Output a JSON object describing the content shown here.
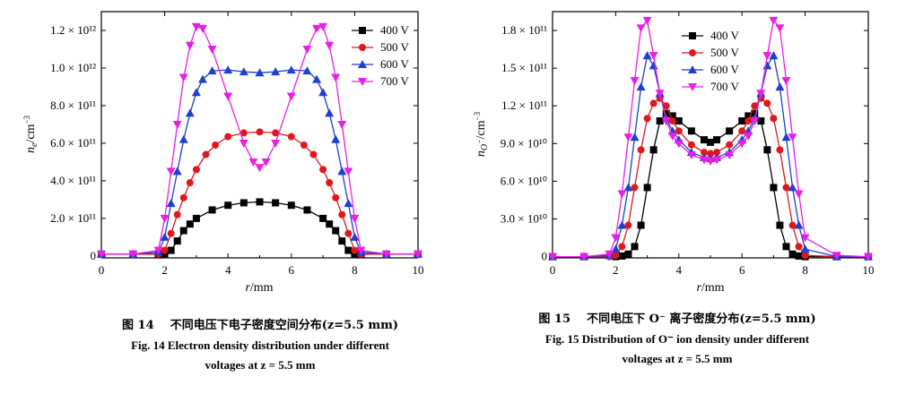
{
  "chart_data": [
    {
      "type": "line",
      "figure_label": "图 14",
      "caption_zh": "不同电压下电子密度空间分布(z=5.5 mm)",
      "caption_en_line1": "Fig. 14   Electron density distribution under different",
      "caption_en_line2": "voltages at z = 5.5 mm",
      "xlabel": "r/mm",
      "ylabel": "ne/cm−3",
      "xlim": [
        0,
        10
      ],
      "ylim": [
        -10000000000.0,
        1300000000000.0
      ],
      "xticks": [
        0,
        2,
        4,
        6,
        8,
        10
      ],
      "xtick_labels": [
        "0",
        "2",
        "4",
        "6",
        "8",
        "10"
      ],
      "yticks": [
        0,
        200000000000.0,
        400000000000.0,
        600000000000.0,
        800000000000.0,
        1000000000000.0,
        1200000000000.0
      ],
      "ytick_labels": [
        "0",
        "2.0 × 10¹¹",
        "4.0 × 10¹¹",
        "6.0 × 10¹¹",
        "8.0 × 10¹¹",
        "1.0 × 10¹²",
        "1.2 × 10¹²"
      ],
      "legend_position": "top-right",
      "series": [
        {
          "name": "400 V",
          "color": "#000000",
          "marker": "square",
          "x": [
            0,
            1,
            1.8,
            2.0,
            2.2,
            2.4,
            2.6,
            2.8,
            3.0,
            3.5,
            4.0,
            4.5,
            5.0,
            5.5,
            6.0,
            6.5,
            7.0,
            7.2,
            7.4,
            7.6,
            7.8,
            8.0,
            8.2,
            9,
            10
          ],
          "y": [
            10000000000.0,
            10000000000.0,
            10000000000.0,
            12000000000.0,
            30000000000.0,
            80000000000.0,
            135000000000.0,
            170000000000.0,
            200000000000.0,
            245000000000.0,
            270000000000.0,
            283000000000.0,
            288000000000.0,
            283000000000.0,
            270000000000.0,
            245000000000.0,
            200000000000.0,
            170000000000.0,
            135000000000.0,
            80000000000.0,
            30000000000.0,
            12000000000.0,
            10000000000.0,
            10000000000.0,
            10000000000.0
          ]
        },
        {
          "name": "500 V",
          "color": "#e0181b",
          "marker": "circle",
          "x": [
            0,
            1,
            1.8,
            2.0,
            2.2,
            2.4,
            2.6,
            2.8,
            3.0,
            3.3,
            3.6,
            4.0,
            4.5,
            5.0,
            5.5,
            6.0,
            6.4,
            6.7,
            7.0,
            7.2,
            7.4,
            7.6,
            7.8,
            8.0,
            8.2,
            9,
            10
          ],
          "y": [
            10000000000.0,
            10000000000.0,
            10000000000.0,
            30000000000.0,
            120000000000.0,
            220000000000.0,
            310000000000.0,
            390000000000.0,
            460000000000.0,
            540000000000.0,
            590000000000.0,
            635000000000.0,
            655000000000.0,
            660000000000.0,
            655000000000.0,
            635000000000.0,
            590000000000.0,
            540000000000.0,
            460000000000.0,
            390000000000.0,
            310000000000.0,
            220000000000.0,
            120000000000.0,
            30000000000.0,
            10000000000.0,
            10000000000.0,
            10000000000.0
          ]
        },
        {
          "name": "600 V",
          "color": "#1f3fcf",
          "marker": "triangle-up",
          "x": [
            0,
            1,
            1.8,
            2.0,
            2.2,
            2.4,
            2.6,
            2.8,
            3.0,
            3.2,
            3.5,
            4.0,
            4.5,
            5.0,
            5.5,
            6.0,
            6.5,
            6.8,
            7.0,
            7.2,
            7.4,
            7.6,
            7.8,
            8.0,
            8.2,
            9,
            10
          ],
          "y": [
            10000000000.0,
            10000000000.0,
            20000000000.0,
            100000000000.0,
            280000000000.0,
            450000000000.0,
            620000000000.0,
            760000000000.0,
            870000000000.0,
            940000000000.0,
            985000000000.0,
            990000000000.0,
            980000000000.0,
            975000000000.0,
            980000000000.0,
            990000000000.0,
            985000000000.0,
            940000000000.0,
            870000000000.0,
            760000000000.0,
            620000000000.0,
            450000000000.0,
            280000000000.0,
            100000000000.0,
            20000000000.0,
            10000000000.0,
            10000000000.0
          ]
        },
        {
          "name": "700 V",
          "color": "#ea1ee6",
          "marker": "triangle-down",
          "x": [
            0,
            1,
            1.8,
            2.0,
            2.2,
            2.4,
            2.6,
            2.8,
            3.0,
            3.2,
            3.5,
            4.0,
            4.5,
            4.8,
            5.0,
            5.2,
            5.5,
            6.0,
            6.5,
            6.8,
            7.0,
            7.2,
            7.4,
            7.6,
            7.8,
            8.0,
            8.2,
            9,
            10
          ],
          "y": [
            10000000000.0,
            10000000000.0,
            30000000000.0,
            200000000000.0,
            450000000000.0,
            700000000000.0,
            950000000000.0,
            1120000000000.0,
            1220000000000.0,
            1210000000000.0,
            1100000000000.0,
            850000000000.0,
            600000000000.0,
            500000000000.0,
            470000000000.0,
            500000000000.0,
            600000000000.0,
            850000000000.0,
            1100000000000.0,
            1210000000000.0,
            1220000000000.0,
            1120000000000.0,
            950000000000.0,
            700000000000.0,
            450000000000.0,
            200000000000.0,
            30000000000.0,
            10000000000.0,
            10000000000.0
          ]
        }
      ]
    },
    {
      "type": "line",
      "figure_label": "图 15",
      "caption_zh": "不同电压下 O⁻ 离子密度分布(z=5.5 mm)",
      "caption_en_line1": "Fig. 15   Distribution of O⁻ ion density under different",
      "caption_en_line2": "voltages at z = 5.5 mm",
      "xlabel": "r/mm",
      "ylabel": "nO−/cm−3",
      "xlim": [
        0,
        10
      ],
      "ylim": [
        -1000000000.0,
        195000000000.0
      ],
      "xticks": [
        0,
        2,
        4,
        6,
        8,
        10
      ],
      "xtick_labels": [
        "0",
        "2",
        "4",
        "6",
        "8",
        "10"
      ],
      "yticks": [
        0,
        30000000000.0,
        60000000000.0,
        90000000000.0,
        120000000000.0,
        150000000000.0,
        180000000000.0
      ],
      "ytick_labels": [
        "0",
        "3.0 × 10¹⁰",
        "6.0 × 10¹⁰",
        "9.0 × 10¹⁰",
        "1.2 × 10¹¹",
        "1.5 × 10¹¹",
        "1.8 × 10¹¹"
      ],
      "legend_position": "top-center",
      "series": [
        {
          "name": "400 V",
          "color": "#000000",
          "marker": "square",
          "x": [
            0,
            1,
            2.0,
            2.2,
            2.4,
            2.6,
            2.8,
            3.0,
            3.2,
            3.4,
            3.6,
            3.8,
            4.0,
            4.4,
            4.8,
            5.0,
            5.2,
            5.6,
            6.0,
            6.2,
            6.4,
            6.6,
            6.8,
            7.0,
            7.2,
            7.4,
            7.6,
            7.8,
            8.0,
            9,
            10
          ],
          "y": [
            0,
            0,
            0,
            500000000.0,
            2000000000.0,
            8000000000.0,
            25000000000.0,
            55000000000.0,
            85000000000.0,
            108000000000.0,
            114000000000.0,
            112000000000.0,
            108000000000.0,
            100000000000.0,
            93000000000.0,
            91000000000.0,
            93000000000.0,
            100000000000.0,
            108000000000.0,
            112000000000.0,
            114000000000.0,
            108000000000.0,
            85000000000.0,
            55000000000.0,
            25000000000.0,
            8000000000.0,
            2000000000.0,
            500000000.0,
            0,
            0,
            0
          ]
        },
        {
          "name": "500 V",
          "color": "#e0181b",
          "marker": "circle",
          "x": [
            0,
            1,
            1.8,
            2.0,
            2.2,
            2.4,
            2.6,
            2.8,
            3.0,
            3.2,
            3.4,
            3.6,
            3.8,
            4.0,
            4.4,
            4.8,
            5.0,
            5.2,
            5.6,
            6.0,
            6.2,
            6.4,
            6.6,
            6.8,
            7.0,
            7.2,
            7.4,
            7.6,
            7.8,
            8.0,
            9,
            10
          ],
          "y": [
            0,
            0,
            0,
            1000000000.0,
            8000000000.0,
            25000000000.0,
            55000000000.0,
            85000000000.0,
            110000000000.0,
            122000000000.0,
            126000000000.0,
            120000000000.0,
            108000000000.0,
            100000000000.0,
            89000000000.0,
            83000000000.0,
            82000000000.0,
            83000000000.0,
            89000000000.0,
            100000000000.0,
            108000000000.0,
            120000000000.0,
            126000000000.0,
            122000000000.0,
            110000000000.0,
            85000000000.0,
            55000000000.0,
            25000000000.0,
            8000000000.0,
            1000000000.0,
            0,
            0
          ]
        },
        {
          "name": "600 V",
          "color": "#1f3fcf",
          "marker": "triangle-up",
          "x": [
            0,
            1,
            1.8,
            2.0,
            2.2,
            2.4,
            2.6,
            2.8,
            3.0,
            3.2,
            3.4,
            3.6,
            3.8,
            4.0,
            4.4,
            4.8,
            5.0,
            5.2,
            5.6,
            6.0,
            6.2,
            6.4,
            6.6,
            6.8,
            7.0,
            7.2,
            7.4,
            7.6,
            7.8,
            8.0,
            9,
            10
          ],
          "y": [
            0,
            0,
            1000000000.0,
            6000000000.0,
            25000000000.0,
            55000000000.0,
            95000000000.0,
            135000000000.0,
            160000000000.0,
            152000000000.0,
            130000000000.0,
            110000000000.0,
            100000000000.0,
            93000000000.0,
            83000000000.0,
            79000000000.0,
            78000000000.0,
            79000000000.0,
            83000000000.0,
            93000000000.0,
            100000000000.0,
            110000000000.0,
            130000000000.0,
            152000000000.0,
            160000000000.0,
            135000000000.0,
            95000000000.0,
            55000000000.0,
            25000000000.0,
            6000000000.0,
            0,
            0
          ]
        },
        {
          "name": "700 V",
          "color": "#ea1ee6",
          "marker": "triangle-down",
          "x": [
            0,
            1,
            1.8,
            2.0,
            2.2,
            2.4,
            2.6,
            2.8,
            3.0,
            3.2,
            3.4,
            3.6,
            3.8,
            4.0,
            4.4,
            4.8,
            5.0,
            5.2,
            5.6,
            6.0,
            6.2,
            6.4,
            6.6,
            6.8,
            7.0,
            7.2,
            7.4,
            7.6,
            7.8,
            8.0,
            9,
            10
          ],
          "y": [
            0,
            0,
            2000000000.0,
            15000000000.0,
            50000000000.0,
            95000000000.0,
            140000000000.0,
            182000000000.0,
            188000000000.0,
            160000000000.0,
            130000000000.0,
            108000000000.0,
            96000000000.0,
            90000000000.0,
            81000000000.0,
            77000000000.0,
            76000000000.0,
            77000000000.0,
            81000000000.0,
            90000000000.0,
            96000000000.0,
            108000000000.0,
            130000000000.0,
            160000000000.0,
            188000000000.0,
            182000000000.0,
            140000000000.0,
            95000000000.0,
            50000000000.0,
            15000000000.0,
            1000000000.0,
            0
          ]
        }
      ]
    }
  ]
}
